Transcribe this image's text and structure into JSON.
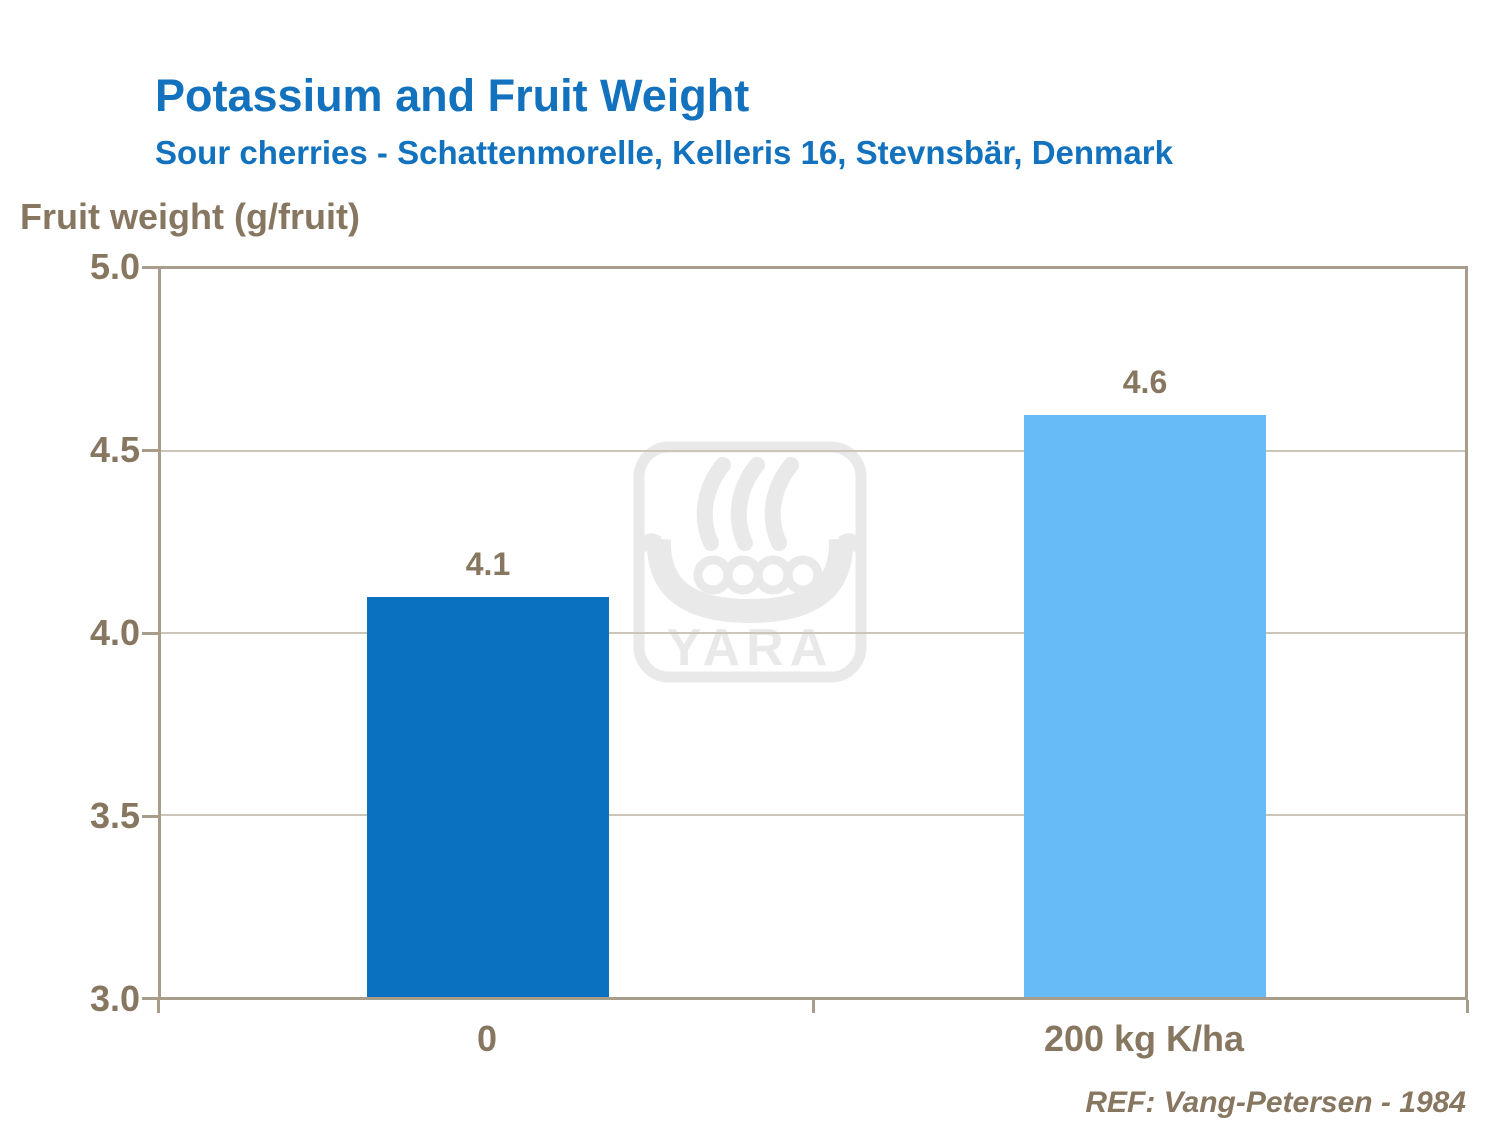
{
  "slide": {
    "title": "Potassium and Fruit Weight",
    "subtitle": "Sour cherries - Schattenmorelle, Kelleris 16, Stevnsbär, Denmark",
    "y_axis_title": "Fruit weight (g/fruit)",
    "reference": "REF: Vang-Petersen - 1984",
    "watermark_text": "YARA"
  },
  "chart_data": {
    "type": "bar",
    "title": "Potassium and Fruit Weight",
    "subtitle": "Sour cherries - Schattenmorelle, Kelleris 16, Stevnsbär, Denmark",
    "ylabel": "Fruit weight (g/fruit)",
    "xlabel": "",
    "categories": [
      "0",
      "200 kg K/ha"
    ],
    "values": [
      4.1,
      4.6
    ],
    "value_labels": [
      "4.1",
      "4.6"
    ],
    "bar_colors": [
      "#0A70C0",
      "#67BBF7"
    ],
    "ylim": [
      3.0,
      5.0
    ],
    "yticks": [
      "5.0",
      "4.5",
      "4.0",
      "3.5",
      "3.0"
    ],
    "grid": "horizontal",
    "legend": "none",
    "annotation": "REF: Vang-Petersen - 1984"
  },
  "colors": {
    "background": "#FFFFFF",
    "title_blue": "#1272BD",
    "text_brown": "#877760",
    "axis_line": "#A89C8B",
    "gridline": "#CCC5BA",
    "bar_dark_blue": "#0A70C0",
    "bar_light_blue": "#67BBF7",
    "watermark_gray": "#E9E9E9"
  }
}
